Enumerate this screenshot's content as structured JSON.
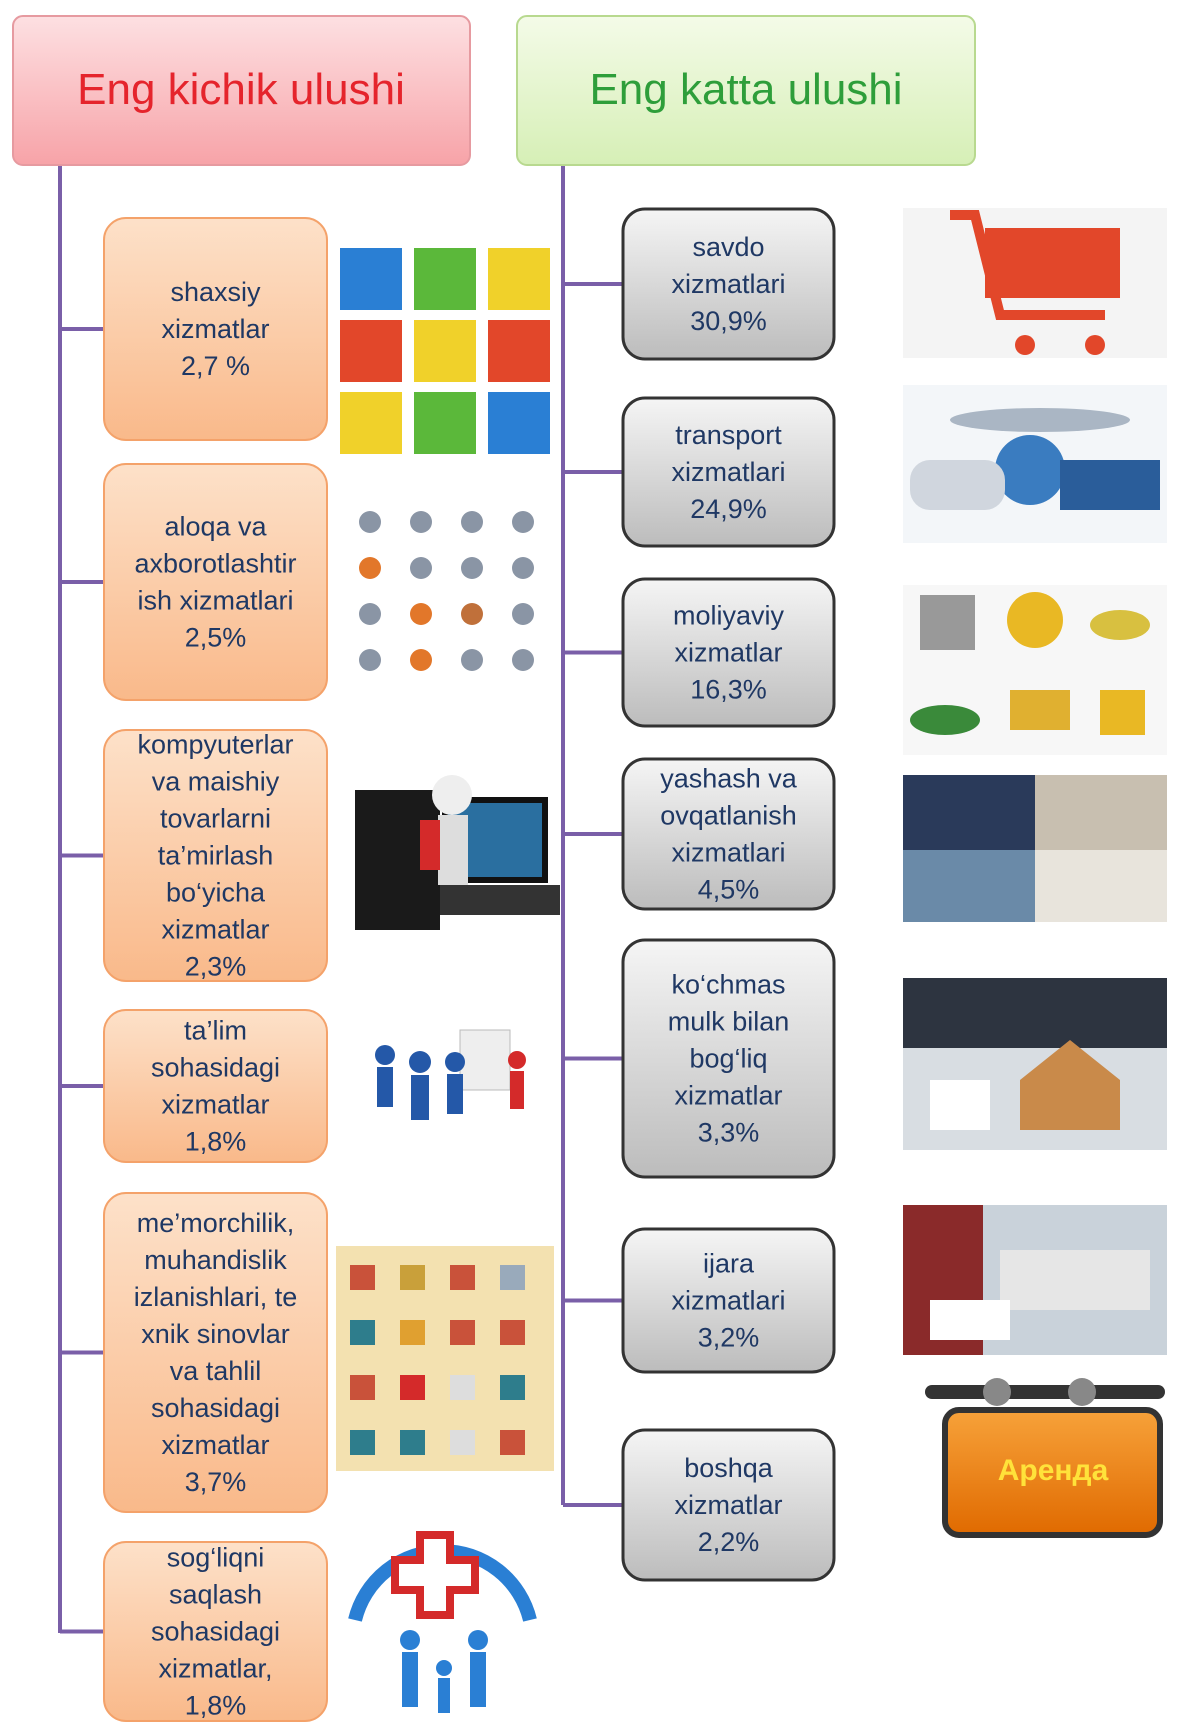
{
  "header": {
    "left_title": "Eng kichik ulushi",
    "right_title": "Eng katta ulushi"
  },
  "left_nodes": [
    {
      "lines": [
        "shaxsiy",
        "xizmatlar",
        "2,7 %"
      ]
    },
    {
      "lines": [
        "aloqa va",
        "axborotlashtir",
        "ish xizmatlari",
        "2,5%"
      ]
    },
    {
      "lines": [
        "kompyuterlar",
        "va maishiy",
        "tovarlarni",
        "ta’mirlash",
        "bo‘yicha",
        "xizmatlar",
        "2,3%"
      ]
    },
    {
      "lines": [
        "ta’lim",
        "sohasidagi",
        "xizmatlar",
        "1,8%"
      ]
    },
    {
      "lines": [
        "me’morchilik,",
        "muhandislik",
        "izlanishlari, te",
        "xnik sinovlar",
        "va tahlil",
        "sohasidagi",
        "xizmatlar",
        "3,7%"
      ]
    },
    {
      "lines": [
        "sog‘liqni",
        "saqlash",
        "sohasidagi",
        "xizmatlar,",
        "1,8%"
      ]
    }
  ],
  "right_nodes": [
    {
      "lines": [
        "savdo",
        "xizmatlari",
        "30,9%"
      ]
    },
    {
      "lines": [
        "transport",
        "xizmatlari",
        "24,9%"
      ]
    },
    {
      "lines": [
        "moliyaviy",
        "xizmatlar",
        "16,3%"
      ]
    },
    {
      "lines": [
        "yashash va",
        "ovqatlanish",
        "xizmatlari",
        "4,5%"
      ]
    },
    {
      "lines": [
        "ko‘chmas",
        "mulk bilan",
        "bog‘liq",
        "xizmatlar",
        "3,3%"
      ]
    },
    {
      "lines": [
        "ijara",
        "xizmatlari",
        "3,2%"
      ]
    },
    {
      "lines": [
        "boshqa",
        "xizmatlar",
        "2,2%"
      ]
    }
  ],
  "sign": {
    "label": "Аренда"
  }
}
